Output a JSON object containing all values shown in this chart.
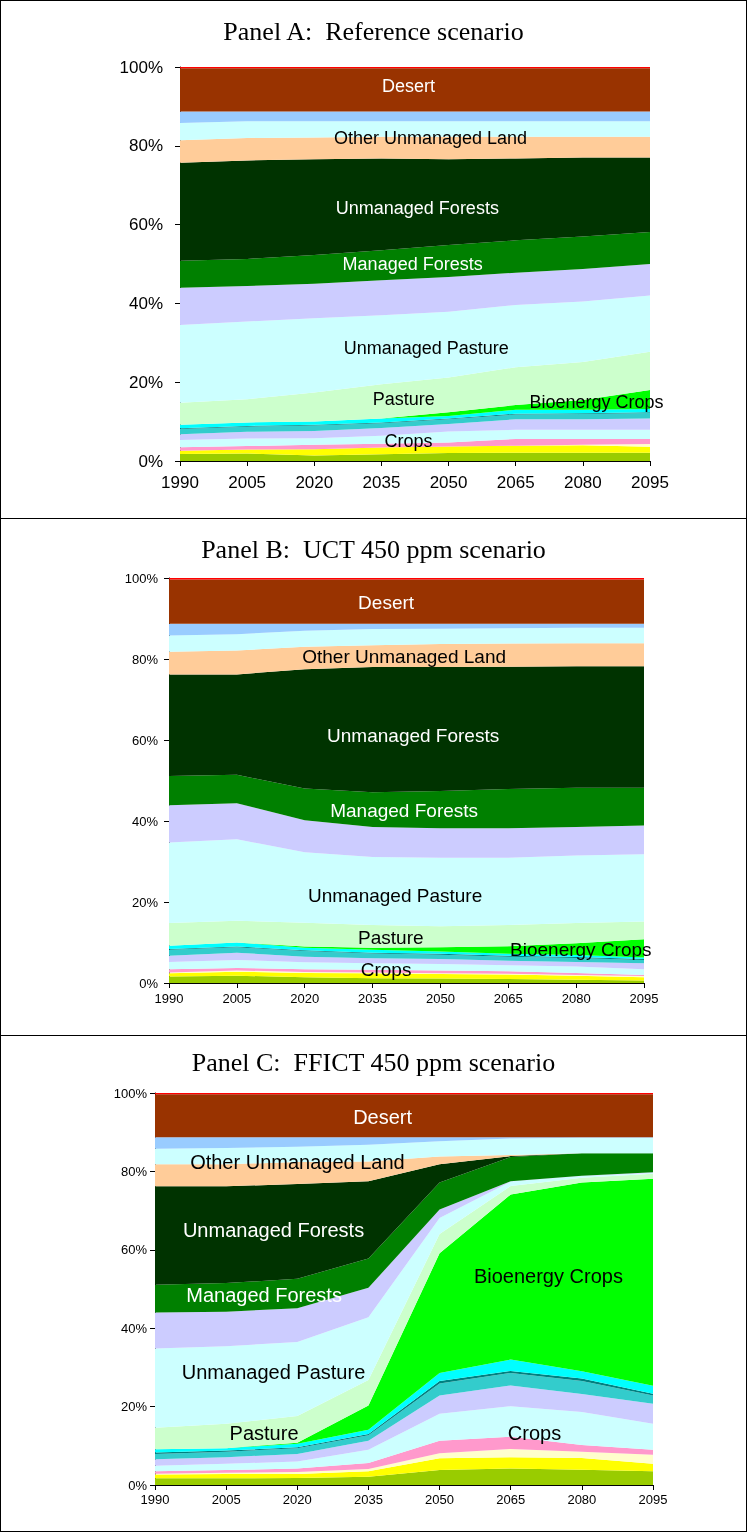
{
  "chart_data": [
    {
      "type": "area",
      "title": "Panel A:  Reference scenario",
      "stacked": true,
      "x": [
        1990,
        2005,
        2020,
        2035,
        2050,
        2065,
        2080,
        2095
      ],
      "xlim": [
        1990,
        2095
      ],
      "xticks": [
        1990,
        2005,
        2020,
        2035,
        2050,
        2065,
        2080,
        2095
      ],
      "ylim": [
        0,
        100
      ],
      "yticks": [
        {
          "value": 0,
          "label": "0%"
        },
        {
          "value": 20,
          "label": "20%"
        },
        {
          "value": 40,
          "label": "40%"
        },
        {
          "value": 60,
          "label": "60%"
        },
        {
          "value": 80,
          "label": "80%"
        },
        {
          "value": 100,
          "label": "100%"
        }
      ],
      "series": [
        {
          "color": "#99cc00",
          "values": [
            1.8,
            1.9,
            1.4,
            1.7,
            2.0,
            2.1,
            2.1,
            2.1
          ]
        },
        {
          "color": "#ffff00",
          "values": [
            0.8,
            1.0,
            1.6,
            1.7,
            1.7,
            1.8,
            1.9,
            1.5
          ]
        },
        {
          "color": "#ffffcc",
          "values": [
            0,
            0,
            0,
            0,
            0,
            0,
            0.1,
            0.7
          ]
        },
        {
          "color": "#ff99cc",
          "values": [
            0.9,
            0.9,
            1.1,
            1.0,
            1.0,
            1.7,
            1.5,
            1.3
          ]
        },
        {
          "color": "#ccffff",
          "values": [
            1.8,
            1.9,
            1.7,
            2.0,
            2.8,
            2.3,
            2.3,
            2.3
          ]
        },
        {
          "color": "#ccccff",
          "values": [
            1.5,
            1.7,
            1.8,
            2.0,
            1.9,
            2.7,
            2.7,
            2.9
          ]
        },
        {
          "color": "#33cccc",
          "values": [
            1.3,
            1.3,
            1.4,
            1.2,
            1.2,
            1.2,
            1.3,
            1.4
          ]
        },
        {
          "color": "#008080",
          "values": [
            0.2,
            0.2,
            0.2,
            0.2,
            0.2,
            0.2,
            0.2,
            0.2
          ]
        },
        {
          "color": "#00ffff",
          "values": [
            0.9,
            0.9,
            0.8,
            1.0,
            0.6,
            1.0,
            0.9,
            0.8
          ]
        },
        {
          "color": "#00ff00",
          "values": [
            0,
            0,
            0,
            0,
            1.0,
            1.2,
            2.5,
            4.8
          ]
        },
        {
          "color": "#ccffcc",
          "values": [
            5.6,
            5.9,
            7.4,
            8.7,
            8.8,
            9.6,
            9.6,
            9.7
          ]
        },
        {
          "color": "#ccffff",
          "values": [
            19.7,
            19.7,
            18.8,
            17.5,
            16.7,
            15.8,
            15.4,
            14.3
          ]
        },
        {
          "color": "#ccccff",
          "values": [
            9.5,
            9.0,
            8.8,
            8.9,
            8.8,
            8.2,
            8.2,
            8.0
          ]
        },
        {
          "color": "#008000",
          "values": [
            6.8,
            6.9,
            7.3,
            7.6,
            8.1,
            8.2,
            8.3,
            8.1
          ]
        },
        {
          "color": "#003300",
          "values": [
            24.9,
            25.0,
            24.3,
            23.3,
            21.8,
            20.8,
            20.0,
            18.9
          ]
        },
        {
          "color": "#ffcc99",
          "values": [
            5.7,
            5.7,
            5.5,
            5.5,
            5.7,
            5.5,
            5.3,
            5.3
          ]
        },
        {
          "color": "#ccffff",
          "values": [
            4.4,
            4.2,
            4.1,
            3.9,
            3.9,
            3.9,
            3.9,
            3.9
          ]
        },
        {
          "color": "#99ccff",
          "values": [
            2.9,
            2.5,
            2.5,
            2.5,
            2.5,
            2.5,
            2.5,
            2.5
          ]
        },
        {
          "color": "#993300",
          "values": [
            11.0,
            11.0,
            11.0,
            11.0,
            11.0,
            11.0,
            11.0,
            11.0
          ]
        },
        {
          "color": "#ff0000",
          "values": [
            0.3,
            0.3,
            0.3,
            0.3,
            0.3,
            0.3,
            0.3,
            0.3
          ]
        }
      ],
      "annotations": [
        "Desert",
        "Other Unmanaged Land",
        "Unmanaged Forests",
        "Managed Forests",
        "Unmanaged Pasture",
        "Pasture",
        "Bioenergy Crops",
        "Crops"
      ]
    },
    {
      "type": "area",
      "title": "Panel B:  UCT 450 ppm scenario",
      "stacked": true,
      "x": [
        1990,
        2005,
        2020,
        2035,
        2050,
        2065,
        2080,
        2095
      ],
      "xlim": [
        1990,
        2095
      ],
      "xticks": [
        1990,
        2005,
        2020,
        2035,
        2050,
        2065,
        2080,
        2095
      ],
      "ylim": [
        0,
        100
      ],
      "yticks": [
        {
          "value": 0,
          "label": "0%"
        },
        {
          "value": 20,
          "label": "20%"
        },
        {
          "value": 40,
          "label": "40%"
        },
        {
          "value": 60,
          "label": "60%"
        },
        {
          "value": 80,
          "label": "80%"
        },
        {
          "value": 100,
          "label": "100%"
        }
      ],
      "series": [
        {
          "color": "#99cc00",
          "values": [
            1.6,
            1.8,
            1.4,
            1.2,
            1.1,
            1.0,
            0.8,
            0.6
          ]
        },
        {
          "color": "#ffff00",
          "values": [
            0.8,
            1.0,
            1.1,
            1.2,
            1.1,
            1.1,
            1.0,
            0.8
          ]
        },
        {
          "color": "#ffffcc",
          "values": [
            0.2,
            0.3,
            0.2,
            0.2,
            0.2,
            0.2,
            0.2,
            0.3
          ]
        },
        {
          "color": "#ff99cc",
          "values": [
            0.8,
            0.6,
            0.7,
            0.7,
            0.7,
            0.6,
            0.5,
            0.3
          ]
        },
        {
          "color": "#ccffff",
          "values": [
            1.8,
            2.0,
            1.7,
            1.6,
            1.6,
            1.5,
            1.6,
            1.4
          ]
        },
        {
          "color": "#ccccff",
          "values": [
            1.5,
            1.8,
            1.4,
            1.2,
            1.2,
            1.1,
            1.1,
            1.5
          ]
        },
        {
          "color": "#33cccc",
          "values": [
            1.5,
            1.3,
            1.4,
            1.2,
            1.1,
            1.0,
            1.0,
            0.8
          ]
        },
        {
          "color": "#008080",
          "values": [
            0.2,
            0.2,
            0.2,
            0.2,
            0.2,
            0.2,
            0.2,
            0.2
          ]
        },
        {
          "color": "#00ffff",
          "values": [
            0.8,
            1.0,
            0.6,
            0.7,
            0.6,
            0.5,
            0.5,
            0.4
          ]
        },
        {
          "color": "#00ff00",
          "values": [
            0,
            0,
            0.3,
            0.5,
            1.0,
            1.9,
            2.9,
            4.5
          ]
        },
        {
          "color": "#ccffcc",
          "values": [
            5.6,
            5.4,
            5.9,
            5.6,
            5.2,
            5.2,
            5.0,
            4.4
          ]
        },
        {
          "color": "#ccffff",
          "values": [
            19.9,
            20.1,
            17.4,
            16.8,
            16.9,
            16.6,
            16.7,
            16.6
          ]
        },
        {
          "color": "#ccccff",
          "values": [
            9.2,
            8.9,
            7.9,
            7.4,
            7.3,
            7.3,
            7.0,
            7.1
          ]
        },
        {
          "color": "#008000",
          "values": [
            7.2,
            7.0,
            7.8,
            8.6,
            9.2,
            9.7,
            9.7,
            9.3
          ]
        },
        {
          "color": "#003300",
          "values": [
            25.1,
            24.8,
            29.5,
            30.9,
            30.6,
            30.2,
            30.0,
            30.0
          ]
        },
        {
          "color": "#ffcc99",
          "values": [
            5.6,
            5.9,
            5.5,
            5.4,
            5.7,
            5.7,
            5.7,
            5.7
          ]
        },
        {
          "color": "#ccffff",
          "values": [
            4.0,
            4.0,
            4.0,
            4.0,
            3.8,
            3.8,
            3.8,
            3.8
          ]
        },
        {
          "color": "#99ccff",
          "values": [
            2.9,
            2.6,
            1.7,
            1.3,
            1.2,
            1.1,
            1.0,
            1.0
          ]
        },
        {
          "color": "#993300",
          "values": [
            10.9,
            10.9,
            10.9,
            10.9,
            10.9,
            10.9,
            10.9,
            10.9
          ]
        },
        {
          "color": "#ff0000",
          "values": [
            0.4,
            0.4,
            0.4,
            0.4,
            0.4,
            0.4,
            0.4,
            0.4
          ]
        }
      ],
      "annotations": [
        "Desert",
        "Other Unmanaged Land",
        "Unmanaged Forests",
        "Managed Forests",
        "Unmanaged Pasture",
        "Pasture",
        "Bioenergy Crops",
        "Crops"
      ]
    },
    {
      "type": "area",
      "title": "Panel C:  FFICT 450 ppm scenario",
      "stacked": true,
      "x": [
        1990,
        2005,
        2020,
        2035,
        2050,
        2065,
        2080,
        2095
      ],
      "xlim": [
        1990,
        2095
      ],
      "xticks": [
        1990,
        2005,
        2020,
        2035,
        2050,
        2065,
        2080,
        2095
      ],
      "ylim": [
        0,
        100
      ],
      "yticks": [
        {
          "value": 0,
          "label": "0%"
        },
        {
          "value": 20,
          "label": "20%"
        },
        {
          "value": 40,
          "label": "40%"
        },
        {
          "value": 60,
          "label": "60%"
        },
        {
          "value": 80,
          "label": "80%"
        },
        {
          "value": 100,
          "label": "100%"
        }
      ],
      "series": [
        {
          "color": "#99cc00",
          "values": [
            1.7,
            1.7,
            1.8,
            2.1,
            3.8,
            4.2,
            3.9,
            3.5
          ]
        },
        {
          "color": "#ffff00",
          "values": [
            1.0,
            1.1,
            1.0,
            1.4,
            3.0,
            2.9,
            3.0,
            1.9
          ]
        },
        {
          "color": "#ffffcc",
          "values": [
            0.2,
            0.3,
            0.5,
            0.6,
            1.3,
            2.1,
            1.6,
            2.3
          ]
        },
        {
          "color": "#ff99cc",
          "values": [
            0.6,
            0.7,
            0.9,
            1.5,
            3.2,
            3.1,
            1.7,
            1.3
          ]
        },
        {
          "color": "#ccffff",
          "values": [
            1.4,
            1.6,
            1.8,
            3.4,
            6.9,
            7.8,
            8.4,
            6.6
          ]
        },
        {
          "color": "#ccccff",
          "values": [
            1.7,
            1.7,
            1.9,
            2.3,
            4.6,
            5.3,
            4.6,
            5.1
          ]
        },
        {
          "color": "#33cccc",
          "values": [
            1.3,
            1.4,
            1.5,
            1.4,
            3.1,
            3.2,
            3.3,
            2.1
          ]
        },
        {
          "color": "#008080",
          "values": [
            0.4,
            0.3,
            0.2,
            0.3,
            0.6,
            0.5,
            0.7,
            0.5
          ]
        },
        {
          "color": "#00ffff",
          "values": [
            0.8,
            0.6,
            0.9,
            1.1,
            2.1,
            2.9,
            1.8,
            2.0
          ]
        },
        {
          "color": "#00ff00",
          "values": [
            0,
            0,
            0.3,
            6.2,
            30.5,
            42.1,
            48.2,
            52.8
          ]
        },
        {
          "color": "#ccffcc",
          "values": [
            5.5,
            6.2,
            6.8,
            6.5,
            4.9,
            2.2,
            1.2,
            1.3
          ]
        },
        {
          "color": "#ccffff",
          "values": [
            20.2,
            19.8,
            18.9,
            16.0,
            4.1,
            1.1,
            0.4,
            0.2
          ]
        },
        {
          "color": "#ccccff",
          "values": [
            9.2,
            8.8,
            8.6,
            7.5,
            2.2,
            0.1,
            0.1,
            0.2
          ]
        },
        {
          "color": "#008000",
          "values": [
            7.1,
            7.3,
            7.5,
            7.5,
            6.9,
            6.2,
            5.7,
            4.8
          ]
        },
        {
          "color": "#003300",
          "values": [
            25.1,
            24.7,
            24.2,
            19.7,
            4.6,
            0.2,
            0,
            0
          ]
        },
        {
          "color": "#ffcc99",
          "values": [
            5.6,
            5.6,
            5.6,
            5.0,
            2.0,
            0.3,
            0,
            0
          ]
        },
        {
          "color": "#ccffff",
          "values": [
            4.0,
            4.2,
            3.9,
            4.3,
            3.9,
            4.2,
            4.0,
            4.0
          ]
        },
        {
          "color": "#99ccff",
          "values": [
            2.9,
            2.7,
            2.4,
            1.9,
            1.0,
            0.3,
            0.1,
            0.1
          ]
        },
        {
          "color": "#993300",
          "values": [
            11.0,
            11.0,
            11.0,
            11.0,
            11.0,
            11.0,
            11.0,
            11.0
          ]
        },
        {
          "color": "#ff0000",
          "values": [
            0.3,
            0.3,
            0.3,
            0.3,
            0.3,
            0.3,
            0.3,
            0.3
          ]
        }
      ],
      "annotations": [
        "Desert",
        "Other Unmanaged Land",
        "Unmanaged Forests",
        "Managed Forests",
        "Unmanaged Pasture",
        "Pasture",
        "Bioenergy Crops",
        "Crops"
      ]
    }
  ]
}
